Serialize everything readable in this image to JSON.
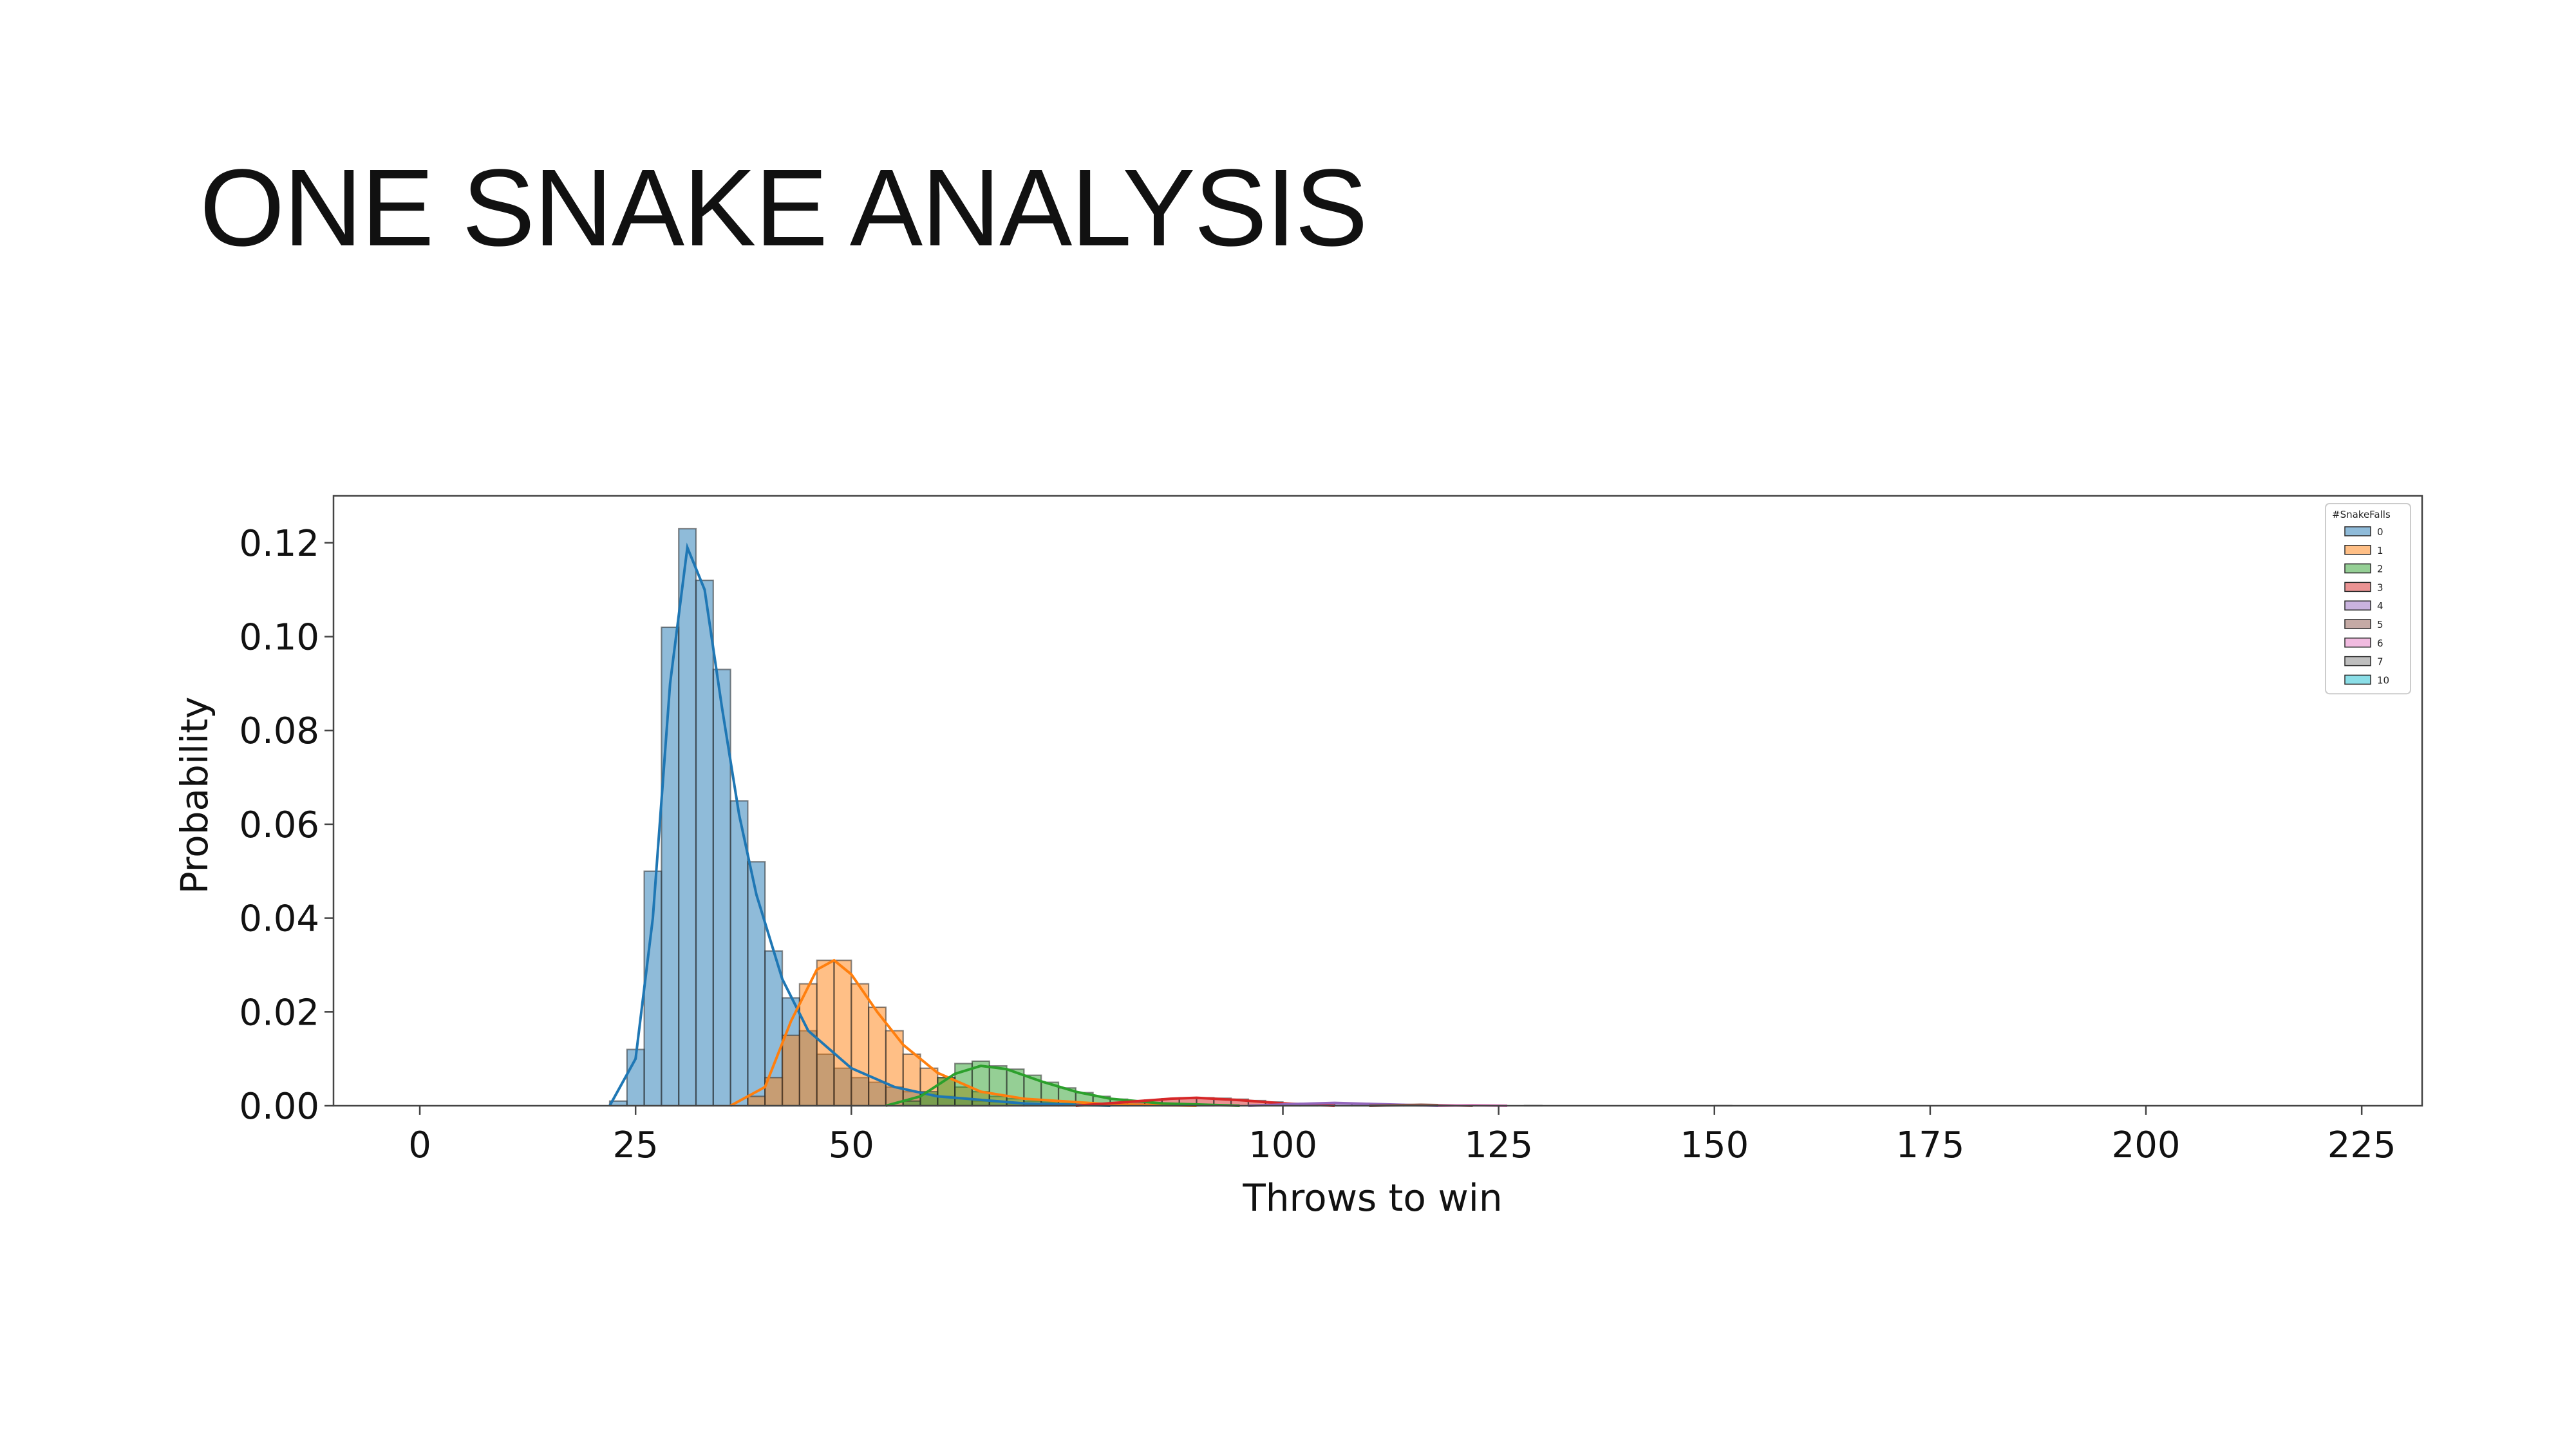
{
  "slide": {
    "title": "ONE SNAKE ANALYSIS"
  },
  "chart_data": {
    "type": "bar",
    "subtype": "overlaid histogram with KDE curves",
    "xlabel": "Throws to win",
    "ylabel": "Probability",
    "xlim": [
      -10,
      232
    ],
    "ylim": [
      0,
      0.13
    ],
    "bin_width": 2,
    "x_ticks": [
      {
        "value": 0,
        "label": "0"
      },
      {
        "value": 25,
        "label": "25"
      },
      {
        "value": 50,
        "label": "50"
      },
      {
        "value": 100,
        "label": "100"
      },
      {
        "value": 125,
        "label": "125"
      },
      {
        "value": 150,
        "label": "150"
      },
      {
        "value": 175,
        "label": "175"
      },
      {
        "value": 200,
        "label": "200"
      },
      {
        "value": 225,
        "label": "225"
      }
    ],
    "y_ticks": [
      {
        "value": 0.0,
        "label": "0.00"
      },
      {
        "value": 0.02,
        "label": "0.02"
      },
      {
        "value": 0.04,
        "label": "0.04"
      },
      {
        "value": 0.06,
        "label": "0.06"
      },
      {
        "value": 0.08,
        "label": "0.08"
      },
      {
        "value": 0.1,
        "label": "0.10"
      },
      {
        "value": 0.12,
        "label": "0.12"
      }
    ],
    "grid": false,
    "legend": {
      "title": "#SnakeFalls",
      "position": "top-right"
    },
    "series": [
      {
        "name": "0",
        "color": "#1f77b4",
        "bins": [
          [
            22,
            0.001
          ],
          [
            24,
            0.012
          ],
          [
            26,
            0.05
          ],
          [
            28,
            0.102
          ],
          [
            30,
            0.123
          ],
          [
            32,
            0.112
          ],
          [
            34,
            0.093
          ],
          [
            36,
            0.065
          ],
          [
            38,
            0.052
          ],
          [
            40,
            0.033
          ],
          [
            42,
            0.023
          ],
          [
            44,
            0.016
          ],
          [
            46,
            0.011
          ],
          [
            48,
            0.008
          ],
          [
            50,
            0.006
          ],
          [
            52,
            0.005
          ],
          [
            54,
            0.004
          ],
          [
            56,
            0.003
          ],
          [
            58,
            0.0025
          ],
          [
            60,
            0.002
          ],
          [
            62,
            0.0015
          ],
          [
            64,
            0.001
          ],
          [
            66,
            0.0008
          ],
          [
            68,
            0.0005
          ],
          [
            70,
            0.0003
          ]
        ],
        "kde": [
          [
            22,
            0.0
          ],
          [
            25,
            0.01
          ],
          [
            27,
            0.04
          ],
          [
            29,
            0.09
          ],
          [
            31,
            0.119
          ],
          [
            33,
            0.11
          ],
          [
            35,
            0.085
          ],
          [
            37,
            0.062
          ],
          [
            39,
            0.045
          ],
          [
            42,
            0.027
          ],
          [
            45,
            0.016
          ],
          [
            50,
            0.008
          ],
          [
            55,
            0.004
          ],
          [
            60,
            0.002
          ],
          [
            70,
            0.0005
          ],
          [
            80,
            0.0
          ]
        ]
      },
      {
        "name": "1",
        "color": "#ff7f0e",
        "bins": [
          [
            38,
            0.002
          ],
          [
            40,
            0.006
          ],
          [
            42,
            0.015
          ],
          [
            44,
            0.026
          ],
          [
            46,
            0.031
          ],
          [
            48,
            0.031
          ],
          [
            50,
            0.026
          ],
          [
            52,
            0.021
          ],
          [
            54,
            0.016
          ],
          [
            56,
            0.011
          ],
          [
            58,
            0.008
          ],
          [
            60,
            0.006
          ],
          [
            62,
            0.004
          ],
          [
            64,
            0.003
          ],
          [
            66,
            0.002
          ],
          [
            68,
            0.0015
          ],
          [
            70,
            0.001
          ],
          [
            72,
            0.0008
          ],
          [
            74,
            0.0005
          ],
          [
            76,
            0.0003
          ]
        ],
        "kde": [
          [
            36,
            0.0
          ],
          [
            40,
            0.004
          ],
          [
            43,
            0.018
          ],
          [
            46,
            0.029
          ],
          [
            48,
            0.031
          ],
          [
            50,
            0.028
          ],
          [
            53,
            0.02
          ],
          [
            56,
            0.013
          ],
          [
            60,
            0.007
          ],
          [
            65,
            0.003
          ],
          [
            70,
            0.0015
          ],
          [
            80,
            0.0003
          ],
          [
            90,
            0.0
          ]
        ]
      },
      {
        "name": "2",
        "color": "#2ca02c",
        "bins": [
          [
            56,
            0.001
          ],
          [
            58,
            0.003
          ],
          [
            60,
            0.006
          ],
          [
            62,
            0.009
          ],
          [
            64,
            0.0095
          ],
          [
            66,
            0.0085
          ],
          [
            68,
            0.0078
          ],
          [
            70,
            0.0065
          ],
          [
            72,
            0.005
          ],
          [
            74,
            0.0038
          ],
          [
            76,
            0.0028
          ],
          [
            78,
            0.002
          ],
          [
            80,
            0.0014
          ],
          [
            82,
            0.001
          ],
          [
            84,
            0.0007
          ],
          [
            86,
            0.0005
          ],
          [
            88,
            0.0003
          ],
          [
            90,
            0.0002
          ]
        ],
        "kde": [
          [
            54,
            0.0
          ],
          [
            58,
            0.002
          ],
          [
            62,
            0.0068
          ],
          [
            65,
            0.0085
          ],
          [
            68,
            0.0078
          ],
          [
            72,
            0.0052
          ],
          [
            76,
            0.003
          ],
          [
            80,
            0.0015
          ],
          [
            86,
            0.0005
          ],
          [
            95,
            0.0
          ]
        ]
      },
      {
        "name": "3",
        "color": "#d62728",
        "bins": [
          [
            80,
            0.0005
          ],
          [
            82,
            0.0008
          ],
          [
            84,
            0.0012
          ],
          [
            86,
            0.0015
          ],
          [
            88,
            0.0017
          ],
          [
            90,
            0.0017
          ],
          [
            92,
            0.0016
          ],
          [
            94,
            0.0014
          ],
          [
            96,
            0.0011
          ],
          [
            98,
            0.0008
          ],
          [
            100,
            0.0005
          ],
          [
            102,
            0.0003
          ]
        ],
        "kde": [
          [
            76,
            0.0
          ],
          [
            82,
            0.0008
          ],
          [
            87,
            0.0015
          ],
          [
            90,
            0.0017
          ],
          [
            95,
            0.0012
          ],
          [
            100,
            0.0005
          ],
          [
            106,
            0.0
          ]
        ]
      },
      {
        "name": "4",
        "color": "#9467bd",
        "bins": [
          [
            100,
            0.0003
          ],
          [
            102,
            0.0005
          ],
          [
            104,
            0.0006
          ],
          [
            106,
            0.0006
          ],
          [
            108,
            0.0005
          ],
          [
            110,
            0.0004
          ],
          [
            112,
            0.0003
          ],
          [
            114,
            0.0002
          ]
        ],
        "kde": [
          [
            96,
            0.0
          ],
          [
            102,
            0.0004
          ],
          [
            106,
            0.0006
          ],
          [
            110,
            0.0004
          ],
          [
            118,
            0.0
          ]
        ]
      },
      {
        "name": "5",
        "color": "#8c564b",
        "bins": [
          [
            112,
            0.0002
          ],
          [
            114,
            0.0002
          ],
          [
            116,
            0.0002
          ],
          [
            118,
            0.0001
          ]
        ],
        "kde": [
          [
            110,
            0.0
          ],
          [
            116,
            0.0002
          ],
          [
            122,
            0.0
          ]
        ]
      },
      {
        "name": "6",
        "color": "#e377c2",
        "bins": [
          [
            120,
            0.0001
          ],
          [
            122,
            0.0001
          ]
        ],
        "kde": [
          [
            118,
            0.0
          ],
          [
            122,
            0.0001
          ],
          [
            126,
            0.0
          ]
        ]
      },
      {
        "name": "7",
        "color": "#7f7f7f",
        "bins": [
          [
            128,
            5e-05
          ]
        ],
        "kde": []
      },
      {
        "name": "10",
        "color": "#17becf",
        "bins": [
          [
            150,
            3e-05
          ]
        ],
        "kde": []
      }
    ]
  }
}
